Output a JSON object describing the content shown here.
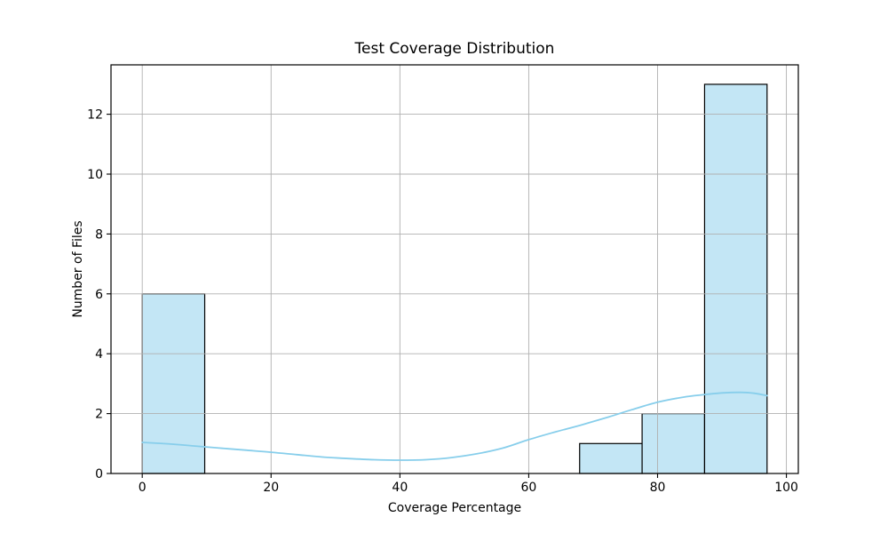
{
  "chart_data": {
    "type": "histogram",
    "title": "Test Coverage Distribution",
    "xlabel": "Coverage Percentage",
    "ylabel": "Number of Files",
    "bin_edges": [
      0,
      9.7,
      19.4,
      29.1,
      38.8,
      48.5,
      58.2,
      67.9,
      77.6,
      87.3,
      97
    ],
    "counts": [
      6,
      0,
      0,
      0,
      0,
      0,
      0,
      1,
      2,
      13
    ],
    "kde": {
      "x": [
        0,
        4,
        8,
        12,
        16,
        20,
        24,
        28,
        32,
        36,
        40,
        44,
        48,
        52,
        56,
        60,
        64,
        68,
        72,
        76,
        80,
        84,
        87,
        90,
        93,
        95,
        97
      ],
      "y": [
        1.04,
        0.99,
        0.92,
        0.85,
        0.78,
        0.71,
        0.63,
        0.55,
        0.5,
        0.46,
        0.445,
        0.46,
        0.53,
        0.66,
        0.85,
        1.13,
        1.38,
        1.61,
        1.86,
        2.13,
        2.38,
        2.55,
        2.63,
        2.69,
        2.71,
        2.68,
        2.6
      ]
    },
    "xticks": [
      0,
      20,
      40,
      60,
      80,
      100
    ],
    "yticks": [
      0,
      2,
      4,
      6,
      8,
      10,
      12
    ],
    "xlim": [
      -4.85,
      101.85
    ],
    "ylim": [
      0,
      13.65
    ],
    "grid": true,
    "legend_position": "none",
    "colors": {
      "bar_fill": "#c3e6f5",
      "bar_edge": "#000000",
      "kde_line": "#87ceeb",
      "grid_line": "#b0b0b0",
      "spine": "#000000",
      "background": "#ffffff",
      "text": "#000000"
    }
  }
}
